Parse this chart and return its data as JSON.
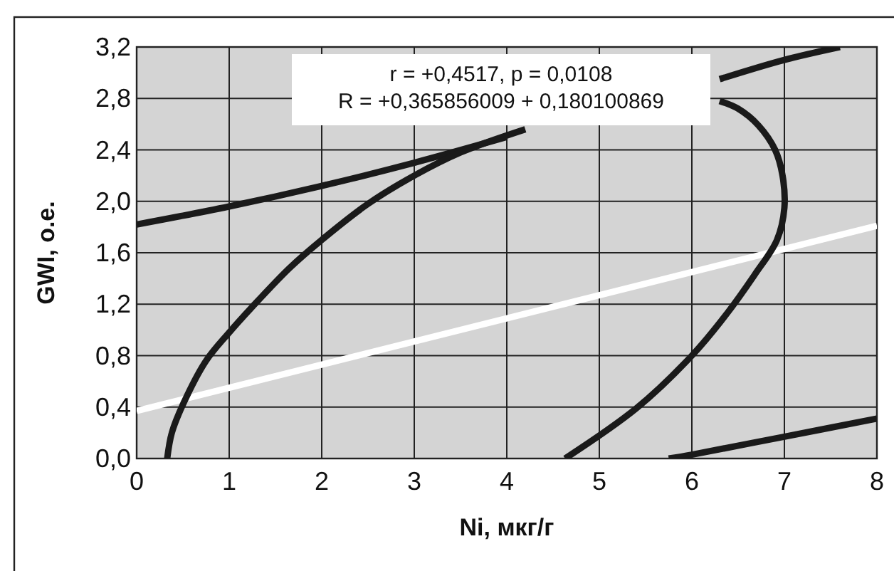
{
  "chart_data": {
    "type": "line",
    "xlabel": "Ni, мкг/г",
    "ylabel": "GWI, о.е.",
    "xlim": [
      0,
      8
    ],
    "xticks": [
      0,
      1,
      2,
      3,
      4,
      5,
      6,
      7,
      8
    ],
    "ylim": [
      0,
      3.2
    ],
    "yticks": [
      {
        "value": 0,
        "label": "0,0"
      },
      {
        "value": 0.4,
        "label": "0,4"
      },
      {
        "value": 0.8,
        "label": "0,8"
      },
      {
        "value": 1.2,
        "label": "1,2"
      },
      {
        "value": 1.6,
        "label": "1,6"
      },
      {
        "value": 2.0,
        "label": "2,0"
      },
      {
        "value": 2.4,
        "label": "2,4"
      },
      {
        "value": 2.8,
        "label": "2,8"
      },
      {
        "value": 3.2,
        "label": "3,2"
      }
    ],
    "grid": true,
    "marker": "none",
    "line_style": "solid",
    "annotations": [
      "r = +0,4517, p = 0,0108",
      "R = +0,365856009 + 0,180100869"
    ],
    "series": [
      {
        "color": "#ffffff",
        "x": [
          0,
          8
        ],
        "values": [
          0.37,
          1.81
        ]
      },
      {
        "color": "#1a1a1a",
        "x": [
          0,
          1,
          2,
          3,
          4,
          5,
          6.3,
          7,
          7.6
        ],
        "values": [
          1.82,
          1.96,
          2.12,
          2.3,
          2.5,
          null,
          2.95,
          3.1,
          3.2
        ]
      },
      {
        "color": "#1a1a1a",
        "x": [
          5.75,
          6,
          7,
          8
        ],
        "values": [
          0,
          0.03,
          0.17,
          0.31
        ]
      },
      {
        "color": "#1a1a1a",
        "x": [
          0.33,
          0.38,
          0.5,
          0.75,
          1,
          1.25,
          1.65,
          2,
          2.5,
          3,
          3.5,
          4.2
        ],
        "values": [
          0,
          0.2,
          0.42,
          0.76,
          0.98,
          1.18,
          1.48,
          1.7,
          1.98,
          2.2,
          2.38,
          2.56
        ]
      },
      {
        "color": "#1a1a1a",
        "x": [
          6.3,
          6.5,
          6.72,
          6.9,
          6.98,
          7.0,
          6.92,
          6.68,
          6.35,
          6,
          5.4,
          4.63
        ],
        "values": [
          2.78,
          2.72,
          2.59,
          2.4,
          2.2,
          1.95,
          1.7,
          1.43,
          1.1,
          0.8,
          0.39,
          0
        ]
      }
    ]
  }
}
